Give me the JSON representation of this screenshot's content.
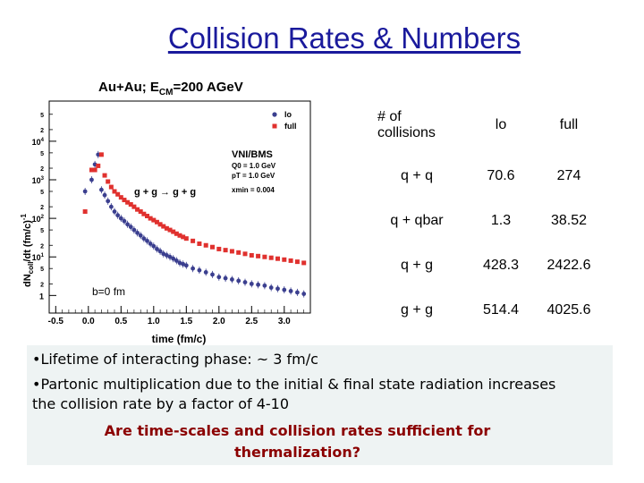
{
  "slide": {
    "title": "Collision Rates & Numbers"
  },
  "chart_data": {
    "type": "scatter",
    "title": "Au+Au; E_CM=200 AGeV",
    "xlabel": "time (fm/c)",
    "ylabel": "dN_coll/dt (fm/c)^-1",
    "yscale": "log",
    "xlim": [
      -0.6,
      3.4
    ],
    "ylim": [
      0.35,
      110000
    ],
    "x_ticks": [
      "-0.5",
      "0.0",
      "0.5",
      "1.0",
      "1.5",
      "2.0",
      "2.5",
      "3.0"
    ],
    "y_decades": [
      {
        "base": "1",
        "exp": ""
      },
      {
        "base": "10",
        "exp": "1"
      },
      {
        "base": "10",
        "exp": "2"
      },
      {
        "base": "10",
        "exp": "3"
      },
      {
        "base": "10",
        "exp": "4"
      }
    ],
    "y_minor_labels": [
      "5",
      "2"
    ],
    "legend_labels": [
      "lo",
      "full"
    ],
    "legend_position": "top-right",
    "colors": {
      "lo": "#3b3f8f",
      "full": "#e0312e"
    },
    "annotations": {
      "model": "VNI/BMS",
      "q0": "Q0 = 1.0 GeV",
      "pt": "pT = 1.0 GeV",
      "xmin": "xmin = 0.004",
      "process": "g + g → g + g",
      "impact": "b=0 fm"
    },
    "series": [
      {
        "name": "lo",
        "x": [
          -0.05,
          0.05,
          0.1,
          0.15,
          0.2,
          0.25,
          0.3,
          0.35,
          0.4,
          0.45,
          0.5,
          0.55,
          0.6,
          0.65,
          0.7,
          0.75,
          0.8,
          0.85,
          0.9,
          0.95,
          1.0,
          1.05,
          1.1,
          1.15,
          1.2,
          1.25,
          1.3,
          1.35,
          1.4,
          1.45,
          1.5,
          1.6,
          1.7,
          1.8,
          1.9,
          2.0,
          2.1,
          2.2,
          2.3,
          2.4,
          2.5,
          2.6,
          2.7,
          2.8,
          2.9,
          3.0,
          3.1,
          3.2,
          3.3
        ],
        "y": [
          500,
          1000,
          2500,
          4500,
          550,
          400,
          280,
          200,
          150,
          120,
          100,
          85,
          70,
          60,
          50,
          42,
          36,
          30,
          26,
          22,
          19,
          16,
          14,
          12,
          11,
          10,
          9,
          8,
          7,
          6.5,
          6,
          5,
          4.5,
          4,
          3.5,
          3,
          2.8,
          2.6,
          2.4,
          2.2,
          2,
          1.9,
          1.8,
          1.6,
          1.5,
          1.4,
          1.3,
          1.2,
          1.1
        ]
      },
      {
        "name": "full",
        "x": [
          -0.05,
          0.05,
          0.1,
          0.15,
          0.2,
          0.25,
          0.3,
          0.35,
          0.4,
          0.45,
          0.5,
          0.55,
          0.6,
          0.65,
          0.7,
          0.75,
          0.8,
          0.85,
          0.9,
          0.95,
          1.0,
          1.05,
          1.1,
          1.15,
          1.2,
          1.25,
          1.3,
          1.35,
          1.4,
          1.45,
          1.5,
          1.6,
          1.7,
          1.8,
          1.9,
          2.0,
          2.1,
          2.2,
          2.3,
          2.4,
          2.5,
          2.6,
          2.7,
          2.8,
          2.9,
          3.0,
          3.1,
          3.2,
          3.3
        ],
        "y": [
          150,
          1800,
          1800,
          2300,
          4500,
          1300,
          900,
          650,
          500,
          420,
          350,
          300,
          260,
          230,
          200,
          170,
          150,
          130,
          115,
          100,
          90,
          80,
          70,
          62,
          55,
          50,
          45,
          40,
          36,
          33,
          30,
          26,
          22,
          20,
          18,
          16,
          15,
          14,
          13,
          12,
          11,
          10.5,
          10,
          9.5,
          9,
          8.5,
          8,
          7.5,
          7
        ]
      }
    ]
  },
  "table": {
    "header": [
      "# of collisions",
      "lo",
      "full"
    ],
    "rows": [
      {
        "proc": "q + q",
        "lo": "70.6",
        "full": "274"
      },
      {
        "proc": "q + qbar",
        "lo": "1.3",
        "full": "38.52"
      },
      {
        "proc": "q + g",
        "lo": "428.3",
        "full": "2422.6"
      },
      {
        "proc": "g + g",
        "lo": "514.4",
        "full": "4025.6"
      }
    ]
  },
  "notes": {
    "bullet1": "Lifetime of interacting phase: ~ 3 fm/c",
    "bullet2_line1": "Partonic multiplication due to the initial & final state radiation increases",
    "bullet2_line2": "the collision rate by a factor of 4-10",
    "question_line1": "Are time-scales and collision rates sufficient for",
    "question_line2": "thermalization?"
  }
}
